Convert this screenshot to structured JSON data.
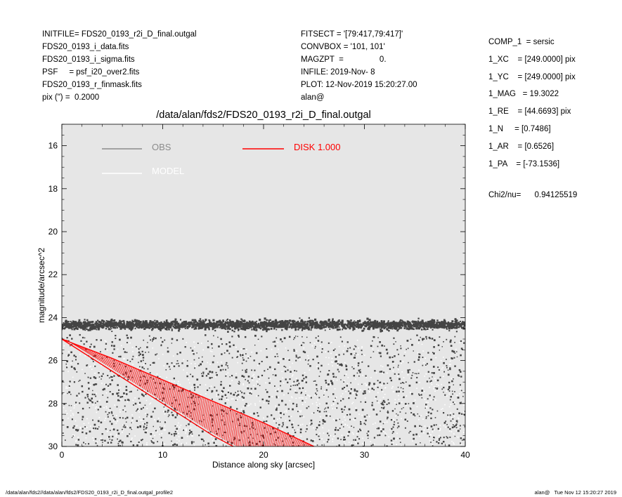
{
  "header": {
    "left": [
      "INITFILE= FDS20_0193_r2i_D_final.outgal",
      "FDS20_0193_i_data.fits",
      "FDS20_0193_i_sigma.fits",
      "PSF     = psf_i20_over2.fits",
      "FDS20_0193_r_finmask.fits",
      "pix (\") =  0.2000"
    ],
    "middle": [
      "FITSECT = '[79:417,79:417]'",
      "CONVBOX = '101, 101'",
      "MAGZPT  =                0.",
      "INFILE: 2019-Nov- 8",
      "PLOT: 12-Nov-2019 15:20:27.00",
      "alan@"
    ],
    "right": [
      "COMP_1  = sersic",
      "1_XC    = [249.0000] pix",
      "1_YC    = [249.0000] pix",
      "1_MAG   = 19.3022",
      "1_RE    = [44.6693] pix",
      "1_N     = [0.7486]",
      "1_AR    = [0.6526]",
      "1_PA    = [-73.1536]"
    ],
    "chi2": "Chi2/nu=      0.94125519"
  },
  "footer": {
    "left": "/data/alan/fds2//data/alan/fds2/FDS20_0193_r2i_D_final.outgal_profile2",
    "right": "alan@   Tue Nov 12 15:20:27 2019"
  },
  "chart_data": {
    "type": "scatter",
    "title": "/data/alan/fds2/FDS20_0193_r2i_D_final.outgal",
    "xlabel": "Distance along sky [arcsec]",
    "ylabel": "magnitude/arcsec^2",
    "xlim": [
      0,
      40
    ],
    "ylim": [
      30,
      15
    ],
    "y_inverted": true,
    "xticks": [
      0,
      10,
      20,
      30,
      40
    ],
    "yticks": [
      16,
      18,
      20,
      22,
      24,
      26,
      28,
      30
    ],
    "grid": false,
    "background_color": "#e6e6e6",
    "legend": [
      {
        "name": "OBS",
        "color": "#8c8c8c"
      },
      {
        "name": "MODEL",
        "color": "#ffffff"
      },
      {
        "name": "DISK  1.000",
        "color": "#ff0000"
      }
    ],
    "series": [
      {
        "name": "OBS",
        "color": "#444444",
        "description_points": [
          {
            "x": 0,
            "y": 24.3
          },
          {
            "x": 5,
            "y": 24.3
          },
          {
            "x": 10,
            "y": 24.35
          },
          {
            "x": 15,
            "y": 24.35
          },
          {
            "x": 20,
            "y": 24.4
          },
          {
            "x": 25,
            "y": 24.4
          },
          {
            "x": 30,
            "y": 24.4
          },
          {
            "x": 35,
            "y": 24.4
          },
          {
            "x": 40,
            "y": 24.4
          }
        ],
        "scatter_range": [
          23.6,
          30.0
        ]
      },
      {
        "name": "MODEL",
        "color": "#ffffff",
        "scatter_range": [
          25.0,
          30.0
        ]
      },
      {
        "name": "DISK  1.000",
        "color": "#ff0000",
        "upper_edge": [
          {
            "x": 0,
            "y": 25.0
          },
          {
            "x": 5,
            "y": 25.9
          },
          {
            "x": 10,
            "y": 26.9
          },
          {
            "x": 15,
            "y": 27.9
          },
          {
            "x": 20,
            "y": 28.9
          },
          {
            "x": 25,
            "y": 30.0
          }
        ],
        "lower_edge": [
          {
            "x": 0,
            "y": 25.0
          },
          {
            "x": 5,
            "y": 26.5
          },
          {
            "x": 10,
            "y": 28.0
          },
          {
            "x": 15,
            "y": 29.5
          },
          {
            "x": 17,
            "y": 30.0
          }
        ]
      }
    ]
  }
}
